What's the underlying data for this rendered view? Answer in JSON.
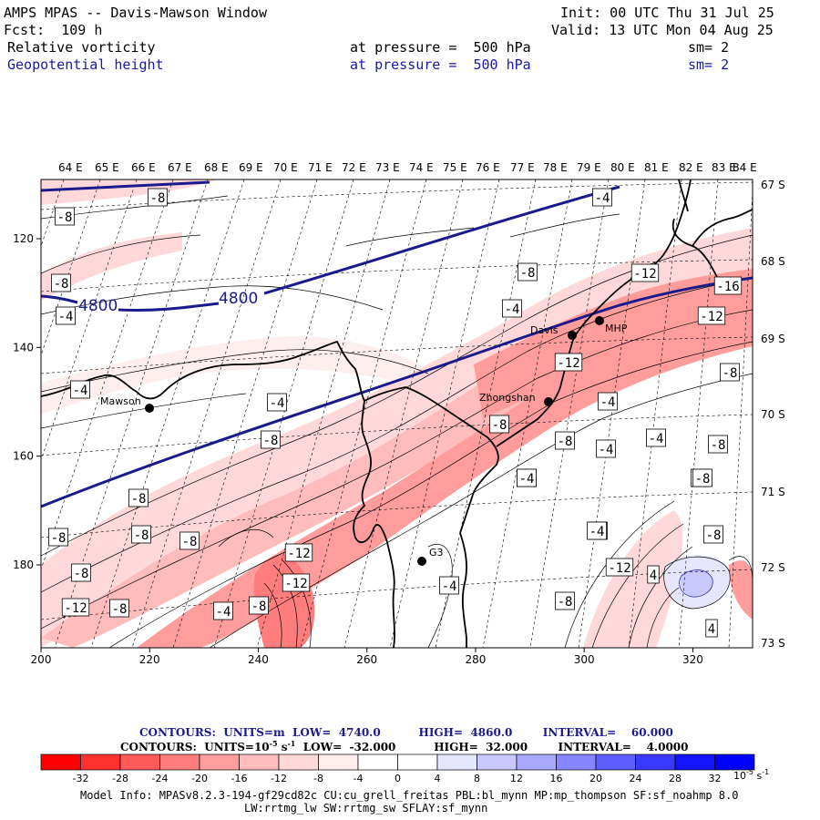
{
  "header": {
    "title": "AMPS MPAS -- Davis-Mawson Window",
    "fcst": "Fcst:  109 h",
    "init": "Init: 00 UTC Thu 31 Jul 25",
    "valid": "Valid: 13 UTC Mon 04 Aug 25",
    "field1": {
      "name": "Relative vorticity",
      "level": "at pressure =  500 hPa",
      "sm": "sm= 2"
    },
    "field2": {
      "name": "Geopotential height",
      "level": "at pressure =  500 hPa",
      "sm": "sm= 2"
    }
  },
  "map": {
    "lon_labels": [
      "64 E",
      "65 E",
      "66 E",
      "67 E",
      "68 E",
      "69 E",
      "70 E",
      "71 E",
      "72 E",
      "73 E",
      "74 E",
      "75 E",
      "76 E",
      "77 E",
      "78 E",
      "79 E",
      "80 E",
      "81 E",
      "82 E",
      "83 E",
      "84 E"
    ],
    "lat_labels": [
      "67 S",
      "68 S",
      "69 S",
      "70 S",
      "71 S",
      "72 S",
      "73 S"
    ],
    "x_ticks": [
      "200",
      "220",
      "240",
      "260",
      "280",
      "300",
      "320"
    ],
    "y_ticks": [
      "120",
      "140",
      "160",
      "180"
    ],
    "height_labels": [
      "4800",
      "4800"
    ],
    "stations": [
      "Davis",
      "MHP",
      "Mawson",
      "Zhongshan",
      "G3"
    ],
    "vort_labels": [
      "-8",
      "-8",
      "-8",
      "-4",
      "-4",
      "-8",
      "-4",
      "-4",
      "-12",
      "-16",
      "-12",
      "-4",
      "-8",
      "-12",
      "-8",
      "-4",
      "-8",
      "-4",
      "-4",
      "-8",
      "-8",
      "-8",
      "-8",
      "-8",
      "-8",
      "-8",
      "-8",
      "-12",
      "-8",
      "-12",
      "-12",
      "-8",
      "-4",
      "-8",
      "-4",
      "-4",
      "-8",
      "-12",
      "4",
      "-8",
      "-4",
      "4",
      "-8",
      "-4"
    ]
  },
  "contour_info": {
    "line1": {
      "label": "CONTOURS:  UNITS=m  LOW=  4740.0",
      "high": "HIGH=  4860.0",
      "interval": "INTERVAL=    60.000"
    },
    "line2": {
      "label": "CONTOURS:  UNITS=10",
      "exp": "-5",
      "unit": " s",
      "unit_exp": "-1",
      "low": "  LOW=  -32.000",
      "high": "HIGH=  32.000",
      "interval": "INTERVAL=    4.0000"
    }
  },
  "colorbar": {
    "colors": [
      "#ff0000",
      "#ff3030",
      "#ff5a5a",
      "#ff7d7d",
      "#ff9d9d",
      "#ffbcbc",
      "#ffd9d9",
      "#ffeeee",
      "#ffffff",
      "#ffffff",
      "#e6e6ff",
      "#c8c8ff",
      "#a8a8ff",
      "#8686ff",
      "#5e5eff",
      "#3a3aff",
      "#1414ff",
      "#0000ff"
    ],
    "ticks": [
      "-32",
      "-28",
      "-24",
      "-20",
      "-16",
      "-12",
      "-8",
      "-4",
      "0",
      "4",
      "8",
      "12",
      "16",
      "20",
      "24",
      "28",
      "32"
    ],
    "unit": "10",
    "unit_exp": "-5",
    "unit_s": " s",
    "unit_s_exp": "-1"
  },
  "model_info": {
    "line1": "Model Info: MPASv8.2.3-194-gf29cd82c CU:cu_grell_freitas PBL:bl_mynn MP:mp_thompson SF:sf_noahmp 8.0",
    "line2": "LW:rrtmg_lw SW:rrtmg_sw SFLAY:sf_mynn"
  }
}
